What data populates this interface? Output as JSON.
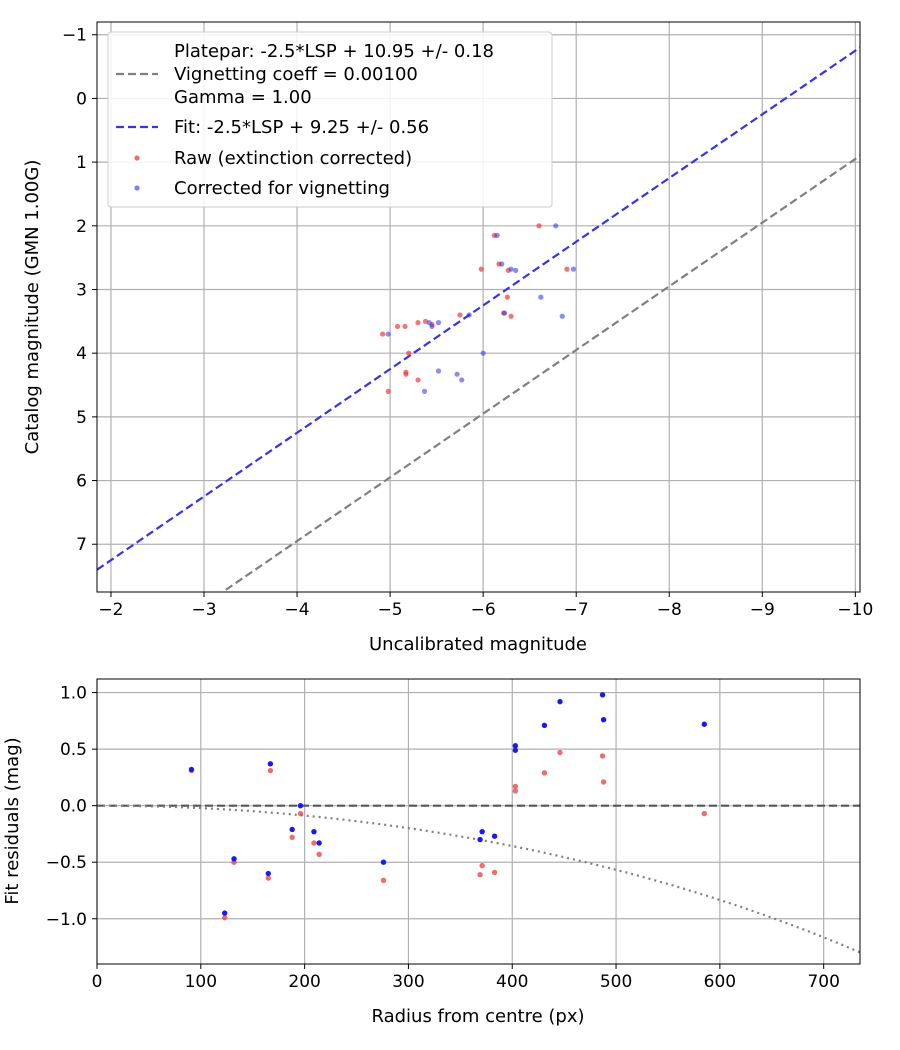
{
  "chart_data": [
    {
      "type": "scatter",
      "title": "",
      "xlabel": "Uncalibrated magnitude",
      "ylabel": "Catalog magnitude (GMN 1.00G)",
      "xlim": [
        -1.85,
        -10.05
      ],
      "ylim": [
        7.75,
        -1.2
      ],
      "x_ticks": [
        -2,
        -3,
        -4,
        -5,
        -6,
        -7,
        -8,
        -9,
        -10
      ],
      "x_tick_labels": [
        "−2",
        "−3",
        "−4",
        "−5",
        "−6",
        "−7",
        "−8",
        "−9",
        "−10"
      ],
      "y_ticks": [
        -1,
        0,
        1,
        2,
        3,
        4,
        5,
        6,
        7
      ],
      "y_tick_labels": [
        "−1",
        "0",
        "1",
        "2",
        "3",
        "4",
        "5",
        "6",
        "7"
      ],
      "grid": true,
      "legend_position": "top-left",
      "legend": [
        "Platepar: -2.5*LSP + 10.95 +/- 0.18",
        "Vignetting coeff = 0.00100",
        "Gamma = 1.00",
        "Fit: -2.5*LSP + 9.25 +/- 0.56",
        "Raw (extinction corrected)",
        "Corrected for vignetting"
      ],
      "lines": [
        {
          "name": "Platepar",
          "slope": 1,
          "intercept": 10.95,
          "color": "#808080",
          "style": "dashed"
        },
        {
          "name": "Fit",
          "slope": 1,
          "intercept": 9.25,
          "color": "#3535e6",
          "style": "dashed"
        }
      ],
      "series": [
        {
          "name": "Raw (extinction corrected)",
          "color": "#ee3b3b",
          "points": [
            [
              -4.92,
              3.7
            ],
            [
              -5.08,
              3.58
            ],
            [
              -5.16,
              3.58
            ],
            [
              -5.3,
              3.52
            ],
            [
              -5.38,
              3.5
            ],
            [
              -5.17,
              4.3
            ],
            [
              -5.17,
              4.33
            ],
            [
              -5.2,
              4.0
            ],
            [
              -5.3,
              4.42
            ],
            [
              -4.98,
              4.6
            ],
            [
              -5.45,
              3.55
            ],
            [
              -5.75,
              3.4
            ],
            [
              -5.98,
              2.68
            ],
            [
              -6.12,
              2.15
            ],
            [
              -6.17,
              2.6
            ],
            [
              -6.22,
              3.37
            ],
            [
              -6.26,
              3.12
            ],
            [
              -6.27,
              2.7
            ],
            [
              -6.3,
              3.42
            ],
            [
              -6.6,
              2.0
            ],
            [
              -6.9,
              2.68
            ]
          ]
        },
        {
          "name": "Corrected for vignetting",
          "color": "#2b2bea",
          "points": [
            [
              -4.98,
              3.7
            ],
            [
              -5.42,
              3.52
            ],
            [
              -5.45,
              3.58
            ],
            [
              -5.52,
              3.52
            ],
            [
              -5.52,
              4.28
            ],
            [
              -5.72,
              4.33
            ],
            [
              -5.77,
              4.42
            ],
            [
              -5.37,
              4.6
            ],
            [
              -5.85,
              3.4
            ],
            [
              -6.0,
              4.0
            ],
            [
              -6.15,
              2.15
            ],
            [
              -6.2,
              2.6
            ],
            [
              -6.23,
              3.37
            ],
            [
              -6.3,
              2.68
            ],
            [
              -6.35,
              2.7
            ],
            [
              -6.62,
              3.12
            ],
            [
              -6.78,
              2.0
            ],
            [
              -6.85,
              3.42
            ],
            [
              -6.97,
              2.68
            ]
          ]
        }
      ]
    },
    {
      "type": "scatter",
      "title": "",
      "xlabel": "Radius from centre (px)",
      "ylabel": "Fit residuals (mag)",
      "xlim": [
        0,
        735
      ],
      "ylim": [
        -1.4,
        1.12
      ],
      "x_ticks": [
        0,
        100,
        200,
        300,
        400,
        500,
        600,
        700
      ],
      "x_tick_labels": [
        "0",
        "100",
        "200",
        "300",
        "400",
        "500",
        "600",
        "700"
      ],
      "y_ticks": [
        1.0,
        0.5,
        0.0,
        -0.5,
        -1.0
      ],
      "y_tick_labels": [
        "1.0",
        "0.5",
        "0.0",
        "−0.5",
        "−1.0"
      ],
      "grid": true,
      "lines": [
        {
          "name": "zero",
          "type": "hline",
          "y": 0,
          "color": "#555555",
          "style": "dashed"
        },
        {
          "name": "vignetting model",
          "type": "curve",
          "coeff": 0.001,
          "color": "#808080",
          "style": "dotted"
        }
      ],
      "series": [
        {
          "name": "Raw (extinction corrected)",
          "color": "#ee3b3b",
          "points": [
            [
              91,
              0.31
            ],
            [
              123,
              -0.99
            ],
            [
              132,
              -0.5
            ],
            [
              165,
              -0.64
            ],
            [
              167,
              0.31
            ],
            [
              188,
              -0.28
            ],
            [
              196,
              -0.07
            ],
            [
              209,
              -0.33
            ],
            [
              214,
              -0.43
            ],
            [
              276,
              -0.66
            ],
            [
              369,
              -0.61
            ],
            [
              371,
              -0.53
            ],
            [
              383,
              -0.59
            ],
            [
              403,
              0.17
            ],
            [
              403,
              0.13
            ],
            [
              431,
              0.29
            ],
            [
              446,
              0.47
            ],
            [
              487,
              0.44
            ],
            [
              488,
              0.21
            ],
            [
              585,
              -0.07
            ]
          ]
        },
        {
          "name": "Corrected for vignetting",
          "color": "#1a1aee",
          "points": [
            [
              91,
              0.32
            ],
            [
              123,
              -0.95
            ],
            [
              132,
              -0.47
            ],
            [
              165,
              -0.6
            ],
            [
              167,
              0.37
            ],
            [
              188,
              -0.21
            ],
            [
              196,
              -0.0
            ],
            [
              209,
              -0.23
            ],
            [
              214,
              -0.33
            ],
            [
              276,
              -0.5
            ],
            [
              369,
              -0.3
            ],
            [
              371,
              -0.23
            ],
            [
              383,
              -0.27
            ],
            [
              403,
              0.53
            ],
            [
              403,
              0.49
            ],
            [
              431,
              0.71
            ],
            [
              446,
              0.92
            ],
            [
              487,
              0.98
            ],
            [
              488,
              0.76
            ],
            [
              585,
              0.72
            ]
          ]
        }
      ]
    }
  ]
}
